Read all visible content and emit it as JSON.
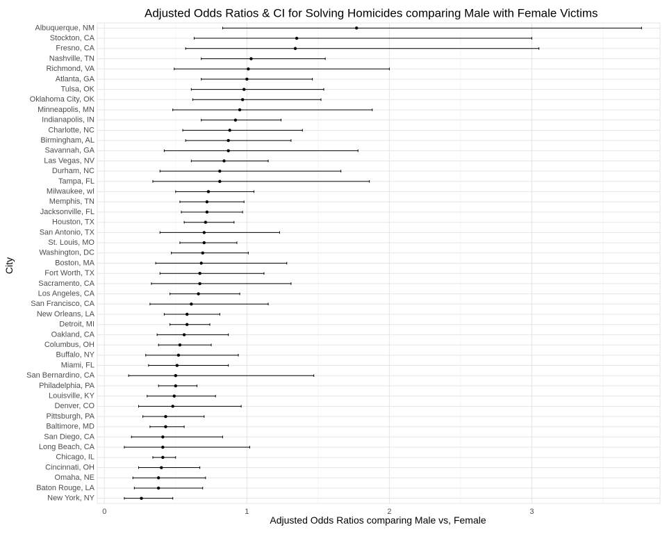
{
  "chart_data": {
    "type": "scatter",
    "title": "Adjusted Odds Ratios & CI for Solving Homicides comparing Male with Female Victims",
    "xlabel": "Adjusted Odds Ratios comparing Male vs, Female",
    "ylabel": "City",
    "xlim": [
      -0.05,
      3.9
    ],
    "xticks": [
      0,
      1,
      2,
      3
    ],
    "grid": true,
    "legend": "none",
    "point_color": "#000000",
    "cities": [
      "Albuquerque, NM",
      "Stockton, CA",
      "Fresno, CA",
      "Nashville, TN",
      "Richmond, VA",
      "Atlanta, GA",
      "Tulsa, OK",
      "Oklahoma City, OK",
      "Minneapolis, MN",
      "Indianapolis, IN",
      "Charlotte, NC",
      "Birmingham, AL",
      "Savannah, GA",
      "Las Vegas, NV",
      "Durham, NC",
      "Tampa, FL",
      "Milwaukee, wI",
      "Memphis, TN",
      "Jacksonville, FL",
      "Houston, TX",
      "San Antonio, TX",
      "St. Louis, MO",
      "Washington, DC",
      "Boston, MA",
      "Fort Worth, TX",
      "Sacramento, CA",
      "Los Angeles, CA",
      "San Francisco, CA",
      "New Orleans, LA",
      "Detroit, MI",
      "Oakland, CA",
      "Columbus, OH",
      "Buffalo, NY",
      "Miami, FL",
      "San Bernardino, CA",
      "Philadelphia, PA",
      "Louisville, KY",
      "Denver, CO",
      "Pittsburgh, PA",
      "Baltimore, MD",
      "San Diego, CA",
      "Long Beach, CA",
      "Chicago, IL",
      "Cincinnati, OH",
      "Omaha, NE",
      "Baton Rouge, LA",
      "New York, NY"
    ],
    "or": [
      1.77,
      1.35,
      1.34,
      1.03,
      1.01,
      1.0,
      0.98,
      0.97,
      0.95,
      0.92,
      0.88,
      0.87,
      0.87,
      0.84,
      0.81,
      0.81,
      0.73,
      0.72,
      0.72,
      0.71,
      0.7,
      0.7,
      0.69,
      0.68,
      0.67,
      0.67,
      0.66,
      0.61,
      0.58,
      0.58,
      0.56,
      0.53,
      0.52,
      0.51,
      0.5,
      0.5,
      0.49,
      0.48,
      0.43,
      0.43,
      0.41,
      0.41,
      0.41,
      0.4,
      0.38,
      0.38,
      0.26
    ],
    "ci_low": [
      0.83,
      0.63,
      0.57,
      0.68,
      0.49,
      0.68,
      0.61,
      0.62,
      0.48,
      0.68,
      0.55,
      0.57,
      0.42,
      0.61,
      0.39,
      0.34,
      0.5,
      0.53,
      0.54,
      0.56,
      0.39,
      0.53,
      0.47,
      0.36,
      0.39,
      0.33,
      0.46,
      0.32,
      0.42,
      0.46,
      0.37,
      0.38,
      0.29,
      0.31,
      0.17,
      0.38,
      0.3,
      0.24,
      0.27,
      0.32,
      0.19,
      0.14,
      0.34,
      0.24,
      0.2,
      0.21,
      0.14
    ],
    "ci_high": [
      3.77,
      3.0,
      3.05,
      1.55,
      2.0,
      1.46,
      1.54,
      1.52,
      1.88,
      1.24,
      1.39,
      1.31,
      1.78,
      1.15,
      1.66,
      1.86,
      1.05,
      0.98,
      0.97,
      0.91,
      1.23,
      0.93,
      1.01,
      1.28,
      1.12,
      1.31,
      0.95,
      1.15,
      0.81,
      0.74,
      0.87,
      0.75,
      0.94,
      0.87,
      1.47,
      0.65,
      0.78,
      0.96,
      0.7,
      0.56,
      0.83,
      1.02,
      0.5,
      0.67,
      0.71,
      0.69,
      0.48
    ]
  }
}
